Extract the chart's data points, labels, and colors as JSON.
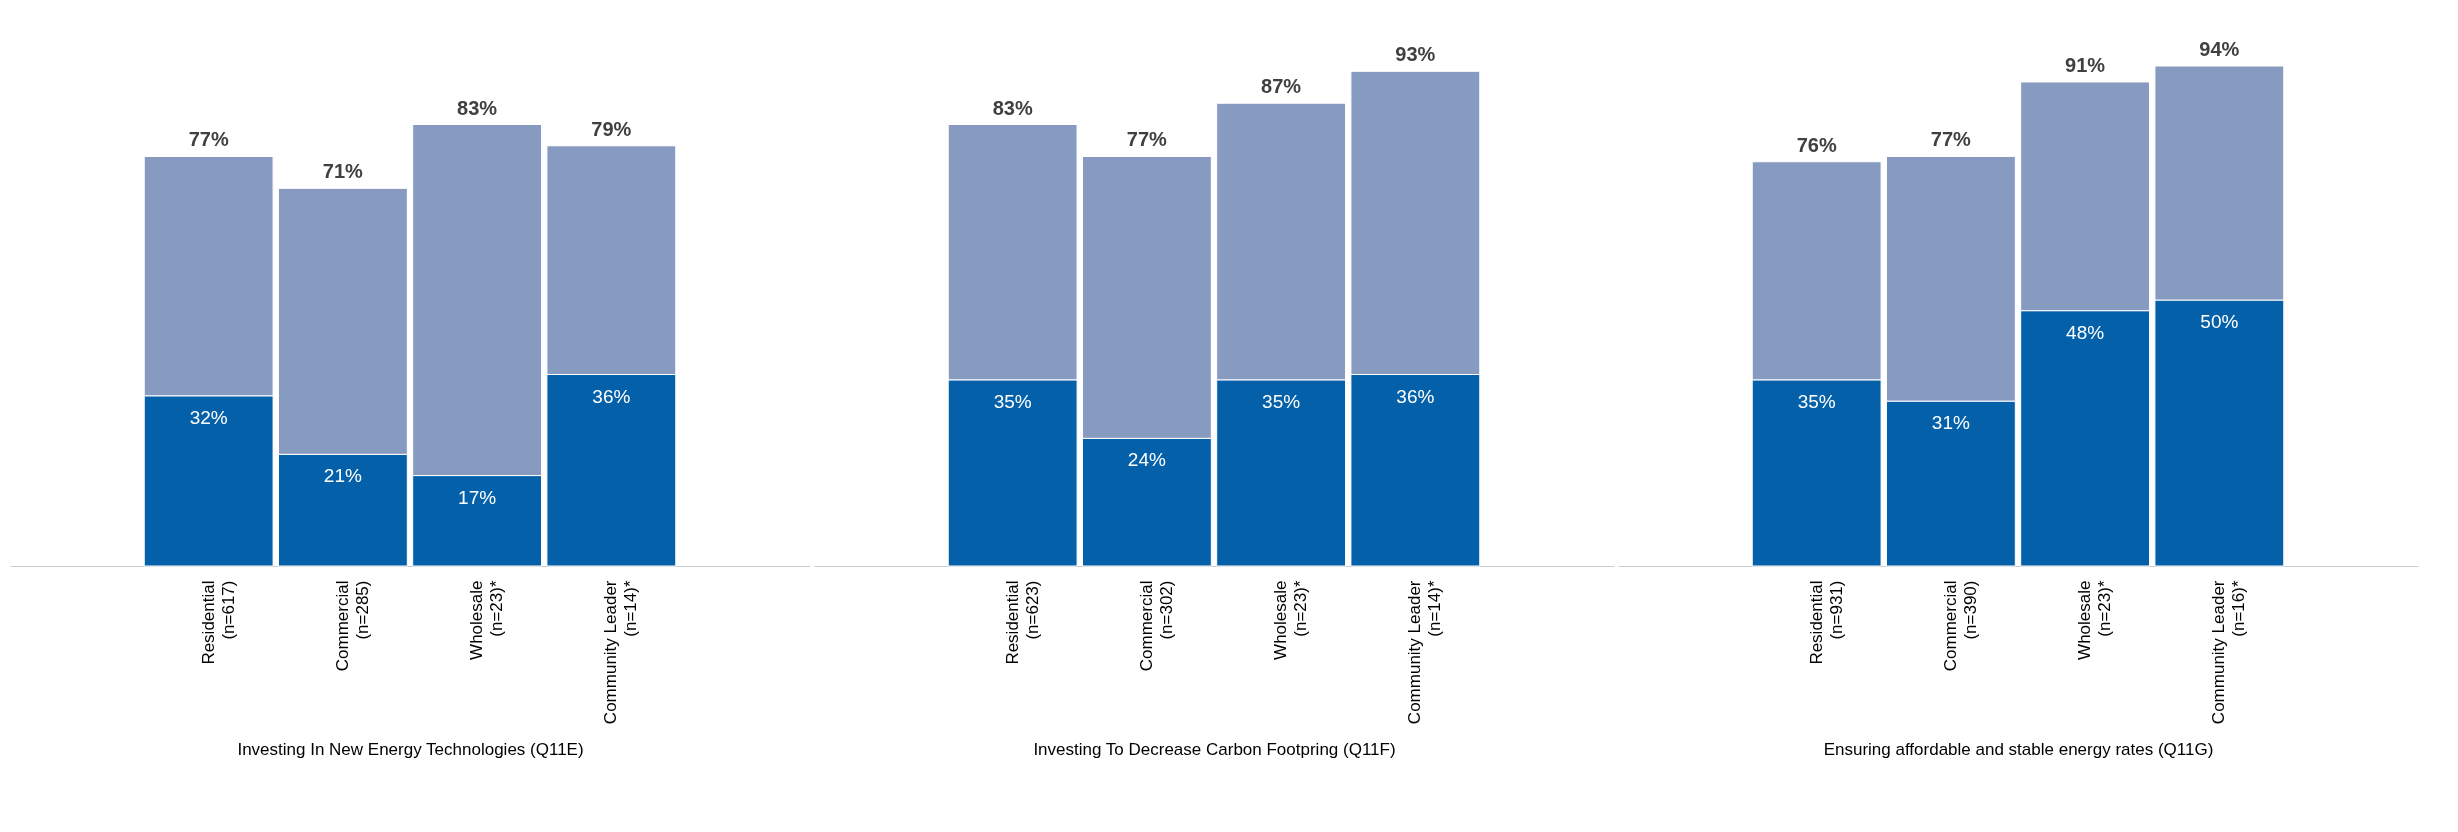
{
  "chart_data": [
    {
      "type": "bar",
      "stacked": true,
      "xlabel": "Investing In New Energy Technologies (Q11E)",
      "categories": [
        "Residential\n(n=617)",
        "Commercial\n(n=285)",
        "Wholesale\n(n=23)*",
        "Community Leader\n(n=14)*"
      ],
      "series": [
        {
          "color": "#0460a9",
          "values": [
            32,
            21,
            17,
            36
          ],
          "value_labels": [
            "32%",
            "21%",
            "17%",
            "36%"
          ]
        },
        {
          "color": "#879bc0",
          "values": [
            45,
            50,
            66,
            43
          ]
        }
      ],
      "totals": [
        "77%",
        "71%",
        "83%",
        "79%"
      ]
    },
    {
      "type": "bar",
      "stacked": true,
      "xlabel": "Investing To Decrease Carbon Footpring (Q11F)",
      "categories": [
        "Residential\n(n=623)",
        "Commercial\n(n=302)",
        "Wholesale\n(n=23)*",
        "Community Leader\n(n=14)*"
      ],
      "series": [
        {
          "color": "#0460a9",
          "values": [
            35,
            24,
            35,
            36
          ],
          "value_labels": [
            "35%",
            "24%",
            "35%",
            "36%"
          ]
        },
        {
          "color": "#879bc0",
          "values": [
            48,
            53,
            52,
            57
          ]
        }
      ],
      "totals": [
        "83%",
        "77%",
        "87%",
        "93%"
      ]
    },
    {
      "type": "bar",
      "stacked": true,
      "xlabel": "Ensuring affordable and stable energy rates (Q11G)",
      "categories": [
        "Residential\n(n=931)",
        "Commercial\n(n=390)",
        "Wholesale\n(n=23)*",
        "Community Leader\n(n=16)*"
      ],
      "series": [
        {
          "color": "#0460a9",
          "values": [
            35,
            31,
            48,
            50
          ],
          "value_labels": [
            "35%",
            "31%",
            "48%",
            "50%"
          ]
        },
        {
          "color": "#879bc0",
          "values": [
            41,
            46,
            43,
            44
          ]
        }
      ],
      "totals": [
        "76%",
        "77%",
        "91%",
        "94%"
      ]
    }
  ]
}
